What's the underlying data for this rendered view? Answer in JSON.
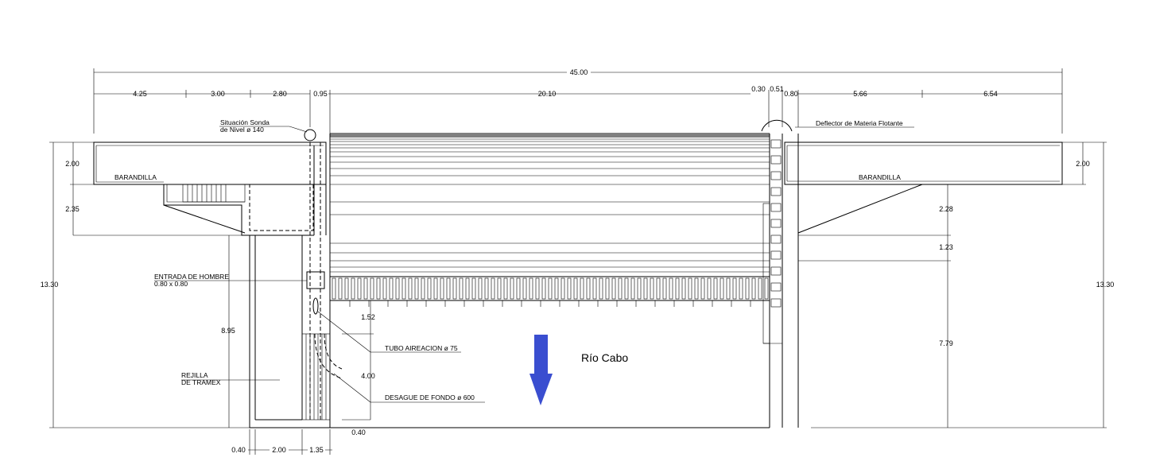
{
  "dimensions": {
    "overall": "45.00",
    "top": [
      "4.25",
      "3.00",
      "2.80",
      "0.95",
      "20.10",
      "0.30",
      "0.51",
      "0.80",
      "5.66",
      "6.54"
    ],
    "left_vertical": [
      "2.00",
      "2.35",
      "13.30"
    ],
    "right_vertical": [
      "2.00",
      "2.28",
      "1.23",
      "7.79",
      "13.30"
    ],
    "inner": [
      "8.95",
      "1.52",
      "4.00",
      "0.40"
    ],
    "bottom": [
      "0.40",
      "2.00",
      "1.35"
    ]
  },
  "labels": {
    "sonda_line1": "Situación Sonda",
    "sonda_line2": "de Nivel ø 140",
    "deflector": "Deflector de Materia Flotante",
    "barandilla_left": "BARANDILLA",
    "barandilla_right": "BARANDILLA",
    "entrada_line1": "ENTRADA DE HOMBRE",
    "entrada_line2": "0.80 x 0.80",
    "rejilla_line1": "REJILLA",
    "rejilla_line2": "DE TRAMEX",
    "tubo": "TUBO AIREACION ø 75",
    "desague": "DESAGUE DE FONDO ø 600",
    "river": "Río Cabo"
  },
  "colors": {
    "arrow": "#3a4ed0",
    "line": "#000000"
  },
  "icons": {
    "flow": "down-arrow-icon"
  }
}
